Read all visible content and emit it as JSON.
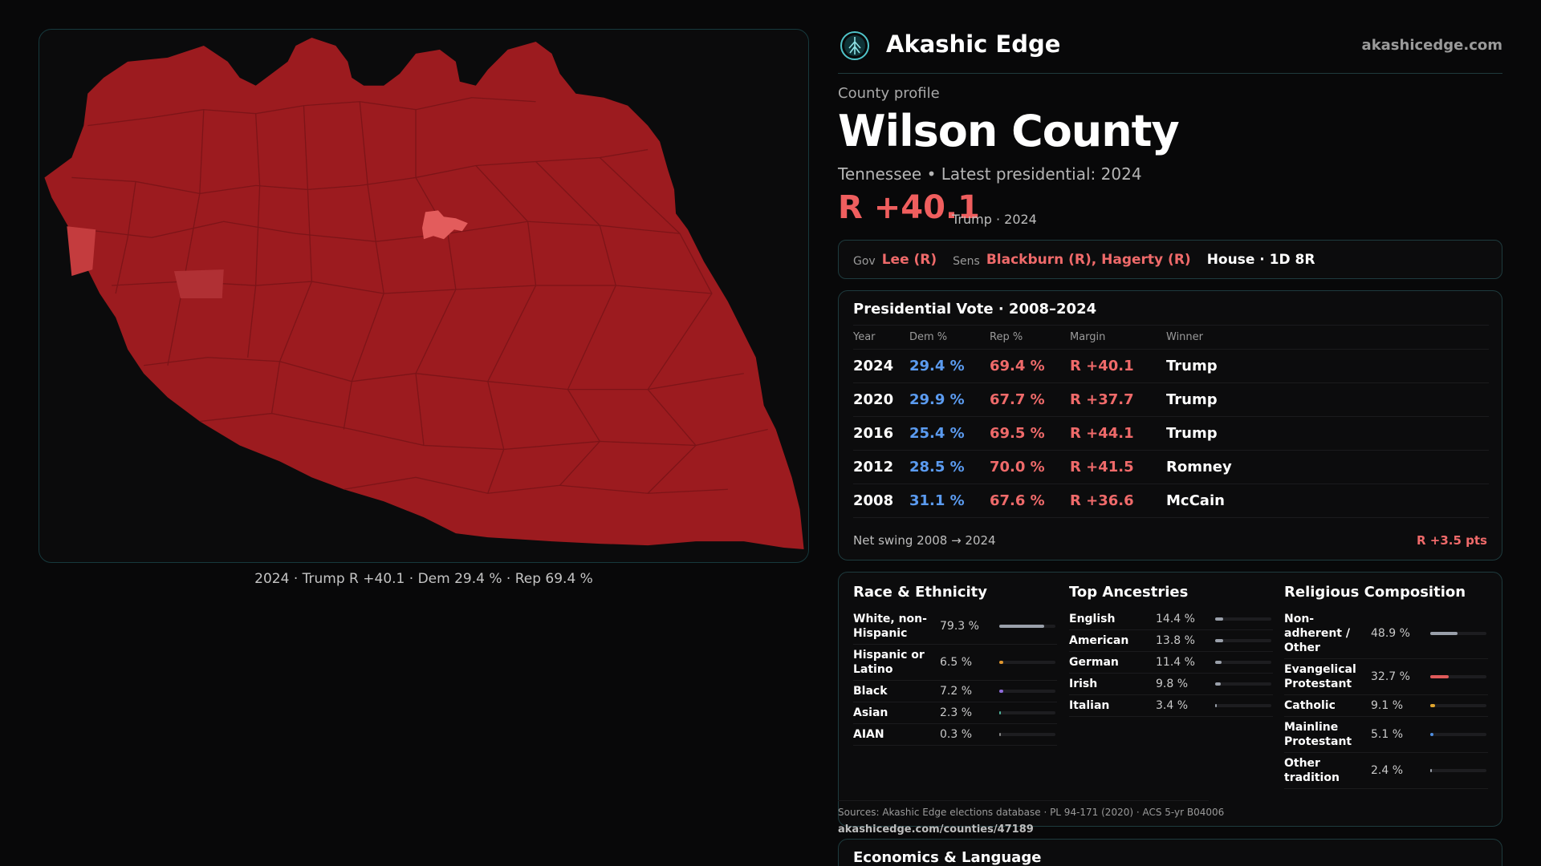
{
  "brand": {
    "name": "Akashic Edge",
    "url": "akashicedge.com",
    "icon": "tree-icon"
  },
  "profile": {
    "kicker": "County profile",
    "title": "Wilson County",
    "subtitle": "Tennessee • Latest presidential: 2024",
    "margin": "R +40.1",
    "margin_note": "Trump · 2024"
  },
  "officials": {
    "gov_label": "Gov",
    "gov": "Lee (R)",
    "sens_label": "Sens",
    "sens": "Blackburn (R), Hagerty (R)",
    "house": "House · 1D 8R"
  },
  "map": {
    "caption": "2024 · Trump R +40.1 · Dem 29.4 % · Rep 69.4 %",
    "fill_color": "#9c1b1f",
    "highlight_color": "#e35c5c"
  },
  "presidential": {
    "title": "Presidential Vote · 2008–2024",
    "headers": {
      "year": "Year",
      "dem": "Dem %",
      "rep": "Rep %",
      "margin": "Margin",
      "winner": "Winner"
    },
    "rows": [
      {
        "year": "2024",
        "dem": "29.4 %",
        "rep": "69.4 %",
        "margin": "R +40.1",
        "winner": "Trump"
      },
      {
        "year": "2020",
        "dem": "29.9 %",
        "rep": "67.7 %",
        "margin": "R +37.7",
        "winner": "Trump"
      },
      {
        "year": "2016",
        "dem": "25.4 %",
        "rep": "69.5 %",
        "margin": "R +44.1",
        "winner": "Trump"
      },
      {
        "year": "2012",
        "dem": "28.5 %",
        "rep": "70.0 %",
        "margin": "R +41.5",
        "winner": "Romney"
      },
      {
        "year": "2008",
        "dem": "31.1 %",
        "rep": "67.6 %",
        "margin": "R +36.6",
        "winner": "McCain"
      }
    ],
    "swing_label": "Net swing 2008 → 2024",
    "swing_value": "R +3.5 pts"
  },
  "race": {
    "title": "Race & Ethnicity",
    "rows": [
      {
        "label": "White, non-Hispanic",
        "pct": "79.3 %",
        "share": 0.793,
        "color": "#9aa0aa"
      },
      {
        "label": "Hispanic or Latino",
        "pct": "6.5 %",
        "share": 0.065,
        "color": "#e0962e"
      },
      {
        "label": "Black",
        "pct": "7.2 %",
        "share": 0.072,
        "color": "#8f6bdb"
      },
      {
        "label": "Asian",
        "pct": "2.3 %",
        "share": 0.023,
        "color": "#4fb39a"
      },
      {
        "label": "AIAN",
        "pct": "0.3 %",
        "share": 0.003,
        "color": "#888888"
      }
    ]
  },
  "ancestries": {
    "title": "Top Ancestries",
    "rows": [
      {
        "label": "English",
        "pct": "14.4 %",
        "share": 0.144,
        "color": "#9aa0aa"
      },
      {
        "label": "American",
        "pct": "13.8 %",
        "share": 0.138,
        "color": "#9aa0aa"
      },
      {
        "label": "German",
        "pct": "11.4 %",
        "share": 0.114,
        "color": "#9aa0aa"
      },
      {
        "label": "Irish",
        "pct": "9.8 %",
        "share": 0.098,
        "color": "#9aa0aa"
      },
      {
        "label": "Italian",
        "pct": "3.4 %",
        "share": 0.034,
        "color": "#9aa0aa"
      }
    ]
  },
  "religion": {
    "title": "Religious Composition",
    "rows": [
      {
        "label": "Non-adherent / Other",
        "pct": "48.9 %",
        "share": 0.489,
        "color": "#9aa0aa"
      },
      {
        "label": "Evangelical Protestant",
        "pct": "32.7 %",
        "share": 0.327,
        "color": "#e05a5a"
      },
      {
        "label": "Catholic",
        "pct": "9.1 %",
        "share": 0.091,
        "color": "#e0a52e"
      },
      {
        "label": "Mainline Protestant",
        "pct": "5.1 %",
        "share": 0.051,
        "color": "#4f8ee0"
      },
      {
        "label": "Other tradition",
        "pct": "2.4 %",
        "share": 0.024,
        "color": "#9aa0aa"
      }
    ]
  },
  "sources": {
    "text": "Sources: Akashic Edge elections database · PL 94-171 (2020) · ACS 5-yr B04006",
    "url": "akashicedge.com/counties/47189"
  },
  "economics": {
    "title": "Economics & Language"
  }
}
